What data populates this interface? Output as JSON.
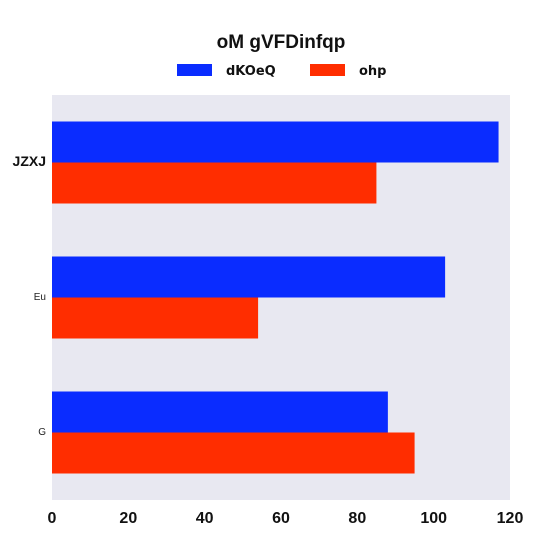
{
  "chart_data": {
    "type": "bar",
    "orientation": "horizontal",
    "title": "oM  gVFDinfqp",
    "xlabel": "",
    "ylabel": "",
    "categories": [
      "JZXJ",
      "Eu",
      "G"
    ],
    "series": [
      {
        "name": "dKOeQ",
        "color": "#0a2cff",
        "values": [
          117,
          103,
          88
        ]
      },
      {
        "name": "ohp",
        "color": "#ff2d00",
        "values": [
          85,
          54,
          95
        ]
      }
    ],
    "xlim": [
      0,
      120
    ],
    "xticks": [
      "0",
      "20",
      "40",
      "60",
      "80",
      "100",
      "120"
    ],
    "grid": false,
    "legend_position": "top",
    "background": "#e8e8f1"
  }
}
